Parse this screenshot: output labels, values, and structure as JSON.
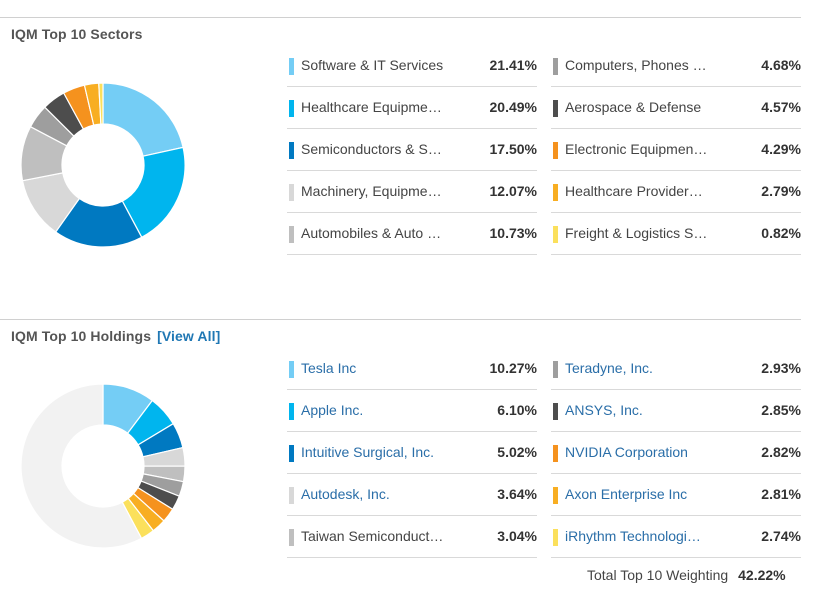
{
  "sectors": {
    "title": "IQM Top 10 Sectors",
    "items": [
      {
        "label": "Software & IT Services",
        "display": "Software & IT Services",
        "value": "21.41%",
        "pct": 21.41,
        "color": "#74cdf5"
      },
      {
        "label": "Healthcare Equipme…",
        "display": "Healthcare Equipme…",
        "value": "20.49%",
        "pct": 20.49,
        "color": "#00b5ee"
      },
      {
        "label": "Semiconductors & S…",
        "display": "Semiconductors & S…",
        "value": "17.50%",
        "pct": 17.5,
        "color": "#0079c1"
      },
      {
        "label": "Machinery, Equipme…",
        "display": "Machinery, Equipme…",
        "value": "12.07%",
        "pct": 12.07,
        "color": "#d8d8d8"
      },
      {
        "label": "Automobiles & Auto …",
        "display": "Automobiles & Auto …",
        "value": "10.73%",
        "pct": 10.73,
        "color": "#bfbfbf"
      },
      {
        "label": "Computers, Phones …",
        "display": "Computers, Phones …",
        "value": "4.68%",
        "pct": 4.68,
        "color": "#9e9e9e"
      },
      {
        "label": "Aerospace & Defense",
        "display": "Aerospace & Defense",
        "value": "4.57%",
        "pct": 4.57,
        "color": "#4d4d4d"
      },
      {
        "label": "Electronic Equipmen…",
        "display": "Electronic Equipmen…",
        "value": "4.29%",
        "pct": 4.29,
        "color": "#f5921e"
      },
      {
        "label": "Healthcare Provider…",
        "display": "Healthcare Provider…",
        "value": "2.79%",
        "pct": 2.79,
        "color": "#f8ae22"
      },
      {
        "label": "Freight & Logistics S…",
        "display": "Freight & Logistics S…",
        "value": "0.82%",
        "pct": 0.82,
        "color": "#fbe05c"
      }
    ]
  },
  "holdings": {
    "title": "IQM Top 10 Holdings",
    "view_all": "[View All]",
    "items": [
      {
        "label": "Tesla Inc",
        "value": "10.27%",
        "pct": 10.27,
        "color": "#74cdf5"
      },
      {
        "label": "Apple Inc.",
        "value": "6.10%",
        "pct": 6.1,
        "color": "#00b5ee"
      },
      {
        "label": "Intuitive Surgical, Inc.",
        "value": "5.02%",
        "pct": 5.02,
        "color": "#0079c1"
      },
      {
        "label": "Autodesk, Inc.",
        "value": "3.64%",
        "pct": 3.64,
        "color": "#d8d8d8"
      },
      {
        "label": "Taiwan Semiconduct…",
        "value": "3.04%",
        "pct": 3.04,
        "color": "#bfbfbf"
      },
      {
        "label": "Teradyne, Inc.",
        "value": "2.93%",
        "pct": 2.93,
        "color": "#9e9e9e"
      },
      {
        "label": "ANSYS, Inc.",
        "value": "2.85%",
        "pct": 2.85,
        "color": "#4d4d4d"
      },
      {
        "label": "NVIDIA Corporation",
        "value": "2.82%",
        "pct": 2.82,
        "color": "#f5921e"
      },
      {
        "label": "Axon Enterprise Inc",
        "value": "2.81%",
        "pct": 2.81,
        "color": "#f8ae22"
      },
      {
        "label": "iRhythm Technologi…",
        "value": "2.74%",
        "pct": 2.74,
        "color": "#fbe05c"
      }
    ],
    "remainder_color": "#f2f2f2",
    "total_label": "Total Top 10 Weighting",
    "total_value": "42.22%"
  }
}
